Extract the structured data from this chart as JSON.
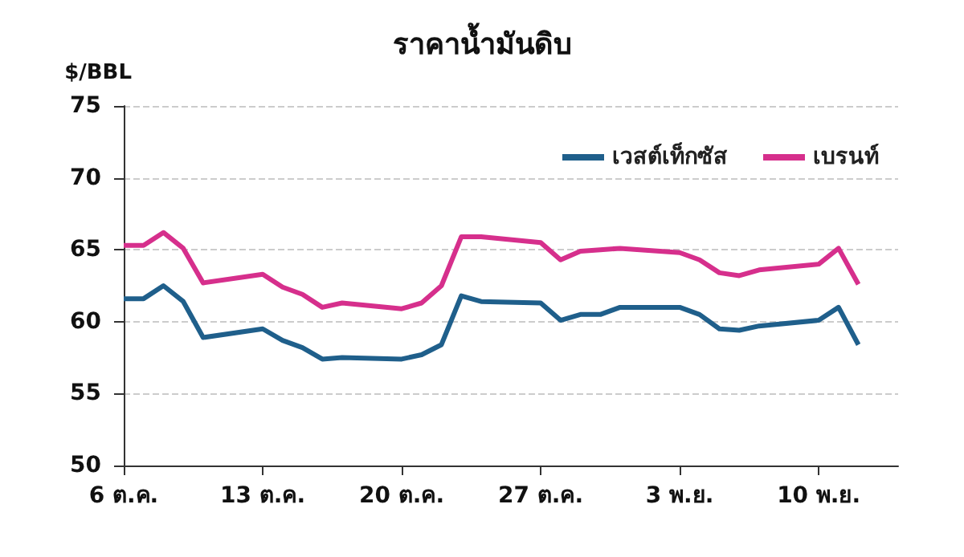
{
  "chart_data": {
    "type": "line",
    "title": "ราคาน้ำมันดิบ",
    "ylabel": "$/BBL",
    "x": [
      "--10-06",
      "--10-07",
      "--10-08",
      "--10-09",
      "--10-10",
      "--10-13",
      "--10-14",
      "--10-15",
      "--10-16",
      "--10-17",
      "--10-20",
      "--10-21",
      "--10-22",
      "--10-23",
      "--10-24",
      "--10-27",
      "--10-28",
      "--10-29",
      "--10-30",
      "--10-31",
      "--11-03",
      "--11-04",
      "--11-05",
      "--11-06",
      "--11-07",
      "--11-10",
      "--11-11",
      "--11-12"
    ],
    "series": [
      {
        "name": "เวสต์เท็กซัส",
        "color": "#1f5f8b",
        "values": [
          61.6,
          61.6,
          62.5,
          61.4,
          58.9,
          59.5,
          58.7,
          58.2,
          57.4,
          57.5,
          57.4,
          57.7,
          58.4,
          61.8,
          61.4,
          61.3,
          60.1,
          60.5,
          60.5,
          61.0,
          61.0,
          60.5,
          59.5,
          59.4,
          59.7,
          60.1,
          61.0,
          58.4
        ]
      },
      {
        "name": "เบรนท์",
        "color": "#d62f8c",
        "values": [
          65.3,
          65.3,
          66.2,
          65.1,
          62.7,
          63.3,
          62.4,
          61.9,
          61.0,
          61.3,
          60.9,
          61.3,
          62.5,
          65.9,
          65.9,
          65.5,
          64.3,
          64.9,
          65.0,
          65.1,
          64.8,
          64.3,
          63.4,
          63.2,
          63.6,
          64.0,
          65.1,
          62.6
        ]
      }
    ],
    "xlim": [
      "--10-06",
      "--11-14"
    ],
    "xticks": [
      {
        "value": "--10-06",
        "label": "6 ต.ค."
      },
      {
        "value": "--10-13",
        "label": "13 ต.ค."
      },
      {
        "value": "--10-20",
        "label": "20 ต.ค."
      },
      {
        "value": "--10-27",
        "label": "27 ต.ค."
      },
      {
        "value": "--11-03",
        "label": "3 พ.ย."
      },
      {
        "value": "--11-10",
        "label": "10 พ.ย."
      }
    ],
    "ylim": [
      50,
      75
    ],
    "yticks": [
      50,
      55,
      60,
      65,
      70,
      75
    ],
    "grid": "y",
    "legend": "top right",
    "marker": "none",
    "line_style": "solid"
  }
}
